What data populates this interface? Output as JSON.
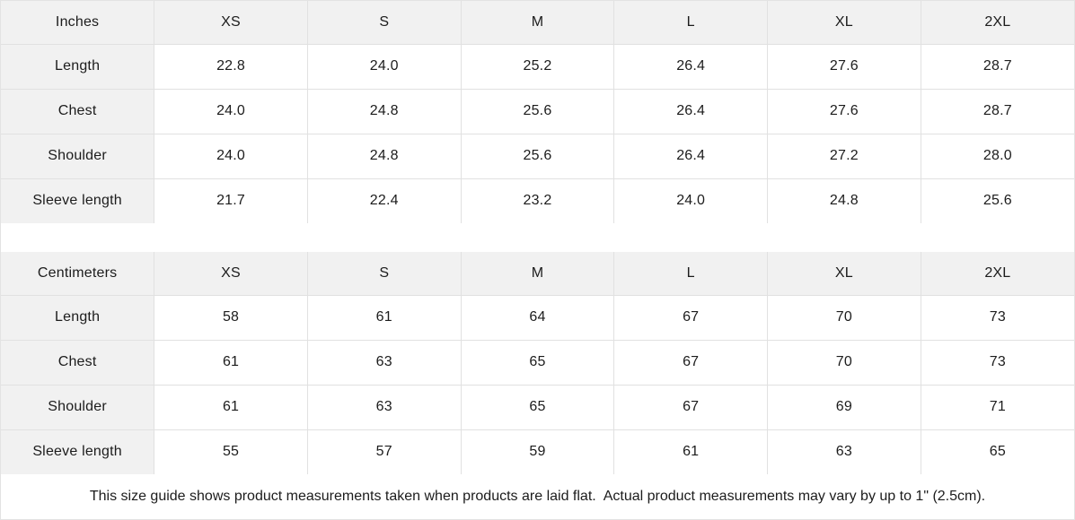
{
  "tables": [
    {
      "unit_label": "Inches",
      "sizes": [
        "XS",
        "S",
        "M",
        "L",
        "XL",
        "2XL"
      ],
      "rows": [
        {
          "label": "Length",
          "values": [
            "22.8",
            "24.0",
            "25.2",
            "26.4",
            "27.6",
            "28.7"
          ]
        },
        {
          "label": "Chest",
          "values": [
            "24.0",
            "24.8",
            "25.6",
            "26.4",
            "27.6",
            "28.7"
          ]
        },
        {
          "label": "Shoulder",
          "values": [
            "24.0",
            "24.8",
            "25.6",
            "26.4",
            "27.2",
            "28.0"
          ]
        },
        {
          "label": "Sleeve length",
          "values": [
            "21.7",
            "22.4",
            "23.2",
            "24.0",
            "24.8",
            "25.6"
          ]
        }
      ]
    },
    {
      "unit_label": "Centimeters",
      "sizes": [
        "XS",
        "S",
        "M",
        "L",
        "XL",
        "2XL"
      ],
      "rows": [
        {
          "label": "Length",
          "values": [
            "58",
            "61",
            "64",
            "67",
            "70",
            "73"
          ]
        },
        {
          "label": "Chest",
          "values": [
            "61",
            "63",
            "65",
            "67",
            "70",
            "73"
          ]
        },
        {
          "label": "Shoulder",
          "values": [
            "61",
            "63",
            "65",
            "67",
            "69",
            "71"
          ]
        },
        {
          "label": "Sleeve length",
          "values": [
            "55",
            "57",
            "59",
            "61",
            "63",
            "65"
          ]
        }
      ]
    }
  ],
  "footer_note": "This size guide shows product measurements taken when products are laid flat.  Actual product measurements may vary by up to 1\" (2.5cm).",
  "colors": {
    "header_bg": "#f1f1f1",
    "cell_bg": "#ffffff",
    "border": "#e1e1e1",
    "text": "#1c1c1c"
  }
}
